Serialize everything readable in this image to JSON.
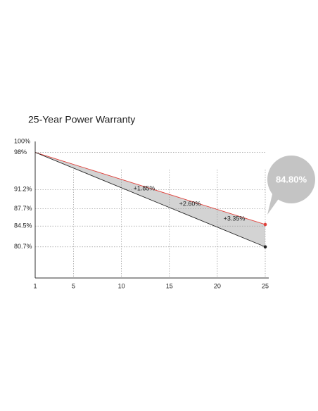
{
  "chart_data": {
    "type": "line",
    "title": "25-Year Power Warranty",
    "x": [
      1,
      25
    ],
    "series": [
      {
        "color": "#e0403a",
        "values": [
          98,
          84.8
        ]
      },
      {
        "color": "#222222",
        "values": [
          98,
          80.7
        ]
      }
    ],
    "xlim": [
      1,
      25
    ],
    "xticks": [
      1,
      5,
      10,
      15,
      20,
      25
    ],
    "ylim": [
      75,
      100
    ],
    "yticks": [
      {
        "value": 100,
        "label": "100%"
      },
      {
        "value": 98,
        "label": "98%"
      },
      {
        "value": 91.2,
        "label": "91.2%"
      },
      {
        "value": 87.7,
        "label": "87.7%"
      },
      {
        "value": 84.5,
        "label": "84.5%"
      },
      {
        "value": 80.7,
        "label": "80.7%"
      }
    ],
    "grid": true,
    "annotations": [
      "+1.85%",
      "+2.60%",
      "+3.35%"
    ],
    "callout": "84.80%"
  }
}
